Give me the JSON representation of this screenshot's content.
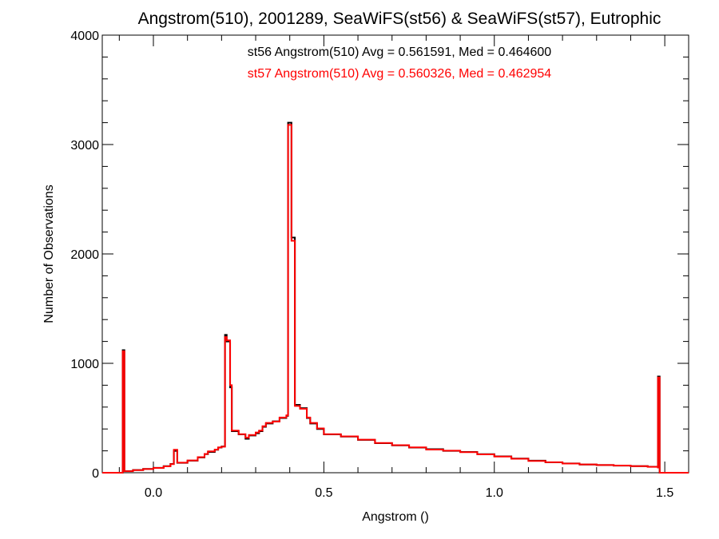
{
  "chart_data": {
    "type": "step-histogram",
    "title": "Angstrom(510), 2001289, SeaWiFS(st56) & SeaWiFS(st57), Eutrophic",
    "xlabel": "Angstrom ()",
    "ylabel": "Number of Observations",
    "xlim": [
      -0.15,
      1.57
    ],
    "ylim": [
      0,
      4000
    ],
    "x_ticks": [
      0.0,
      0.5,
      1.0,
      1.5
    ],
    "x_tick_labels": [
      "0.0",
      "0.5",
      "1.0",
      "1.5"
    ],
    "y_ticks": [
      0,
      1000,
      2000,
      3000,
      4000
    ],
    "y_tick_labels": [
      "0",
      "1000",
      "2000",
      "3000",
      "4000"
    ],
    "annotations": [
      {
        "text": "st56 Angstrom(510) Avg = 0.561591, Med = 0.464600",
        "color": "#000000"
      },
      {
        "text": "st57 Angstrom(510) Avg = 0.560326, Med = 0.462954",
        "color": "#ff0000"
      }
    ],
    "series": [
      {
        "name": "st56",
        "color": "#000000",
        "points": [
          [
            -0.15,
            0
          ],
          [
            -0.09,
            0
          ],
          [
            -0.09,
            1120
          ],
          [
            -0.085,
            1120
          ],
          [
            -0.085,
            15
          ],
          [
            -0.06,
            25
          ],
          [
            -0.03,
            35
          ],
          [
            0.0,
            45
          ],
          [
            0.03,
            60
          ],
          [
            0.05,
            80
          ],
          [
            0.06,
            200
          ],
          [
            0.065,
            200
          ],
          [
            0.07,
            90
          ],
          [
            0.1,
            110
          ],
          [
            0.13,
            140
          ],
          [
            0.15,
            170
          ],
          [
            0.16,
            190
          ],
          [
            0.18,
            210
          ],
          [
            0.19,
            230
          ],
          [
            0.2,
            240
          ],
          [
            0.21,
            1260
          ],
          [
            0.215,
            1200
          ],
          [
            0.22,
            1200
          ],
          [
            0.225,
            780
          ],
          [
            0.23,
            380
          ],
          [
            0.25,
            350
          ],
          [
            0.27,
            310
          ],
          [
            0.28,
            340
          ],
          [
            0.3,
            360
          ],
          [
            0.31,
            380
          ],
          [
            0.32,
            420
          ],
          [
            0.33,
            450
          ],
          [
            0.35,
            470
          ],
          [
            0.37,
            500
          ],
          [
            0.39,
            520
          ],
          [
            0.395,
            3200
          ],
          [
            0.4,
            3200
          ],
          [
            0.405,
            2150
          ],
          [
            0.41,
            2150
          ],
          [
            0.415,
            620
          ],
          [
            0.43,
            590
          ],
          [
            0.45,
            500
          ],
          [
            0.46,
            450
          ],
          [
            0.48,
            400
          ],
          [
            0.5,
            350
          ],
          [
            0.55,
            330
          ],
          [
            0.6,
            300
          ],
          [
            0.65,
            270
          ],
          [
            0.7,
            250
          ],
          [
            0.75,
            230
          ],
          [
            0.8,
            215
          ],
          [
            0.85,
            200
          ],
          [
            0.9,
            190
          ],
          [
            0.95,
            170
          ],
          [
            1.0,
            150
          ],
          [
            1.05,
            130
          ],
          [
            1.1,
            110
          ],
          [
            1.15,
            95
          ],
          [
            1.2,
            85
          ],
          [
            1.25,
            75
          ],
          [
            1.3,
            70
          ],
          [
            1.35,
            65
          ],
          [
            1.4,
            60
          ],
          [
            1.45,
            55
          ],
          [
            1.48,
            40
          ],
          [
            1.48,
            880
          ],
          [
            1.485,
            880
          ],
          [
            1.485,
            0
          ],
          [
            1.57,
            0
          ]
        ]
      },
      {
        "name": "st57",
        "color": "#ff0000",
        "points": [
          [
            -0.15,
            0
          ],
          [
            -0.09,
            0
          ],
          [
            -0.09,
            1110
          ],
          [
            -0.085,
            1110
          ],
          [
            -0.085,
            14
          ],
          [
            -0.06,
            24
          ],
          [
            -0.03,
            34
          ],
          [
            0.0,
            44
          ],
          [
            0.03,
            58
          ],
          [
            0.05,
            78
          ],
          [
            0.06,
            210
          ],
          [
            0.065,
            210
          ],
          [
            0.07,
            92
          ],
          [
            0.1,
            112
          ],
          [
            0.13,
            142
          ],
          [
            0.15,
            172
          ],
          [
            0.16,
            195
          ],
          [
            0.18,
            212
          ],
          [
            0.19,
            232
          ],
          [
            0.2,
            238
          ],
          [
            0.21,
            1240
          ],
          [
            0.215,
            1210
          ],
          [
            0.22,
            1210
          ],
          [
            0.225,
            800
          ],
          [
            0.23,
            385
          ],
          [
            0.25,
            352
          ],
          [
            0.27,
            320
          ],
          [
            0.28,
            345
          ],
          [
            0.3,
            368
          ],
          [
            0.31,
            385
          ],
          [
            0.32,
            425
          ],
          [
            0.33,
            455
          ],
          [
            0.35,
            468
          ],
          [
            0.37,
            505
          ],
          [
            0.39,
            525
          ],
          [
            0.395,
            3180
          ],
          [
            0.4,
            3180
          ],
          [
            0.405,
            2120
          ],
          [
            0.41,
            2120
          ],
          [
            0.415,
            610
          ],
          [
            0.43,
            585
          ],
          [
            0.45,
            505
          ],
          [
            0.46,
            455
          ],
          [
            0.48,
            405
          ],
          [
            0.5,
            352
          ],
          [
            0.55,
            332
          ],
          [
            0.6,
            302
          ],
          [
            0.65,
            272
          ],
          [
            0.7,
            252
          ],
          [
            0.75,
            232
          ],
          [
            0.8,
            212
          ],
          [
            0.85,
            202
          ],
          [
            0.9,
            188
          ],
          [
            0.95,
            168
          ],
          [
            1.0,
            148
          ],
          [
            1.05,
            128
          ],
          [
            1.1,
            108
          ],
          [
            1.15,
            96
          ],
          [
            1.2,
            84
          ],
          [
            1.25,
            76
          ],
          [
            1.3,
            70
          ],
          [
            1.35,
            66
          ],
          [
            1.4,
            60
          ],
          [
            1.45,
            54
          ],
          [
            1.48,
            40
          ],
          [
            1.48,
            870
          ],
          [
            1.485,
            870
          ],
          [
            1.485,
            0
          ],
          [
            1.57,
            0
          ]
        ]
      }
    ]
  }
}
